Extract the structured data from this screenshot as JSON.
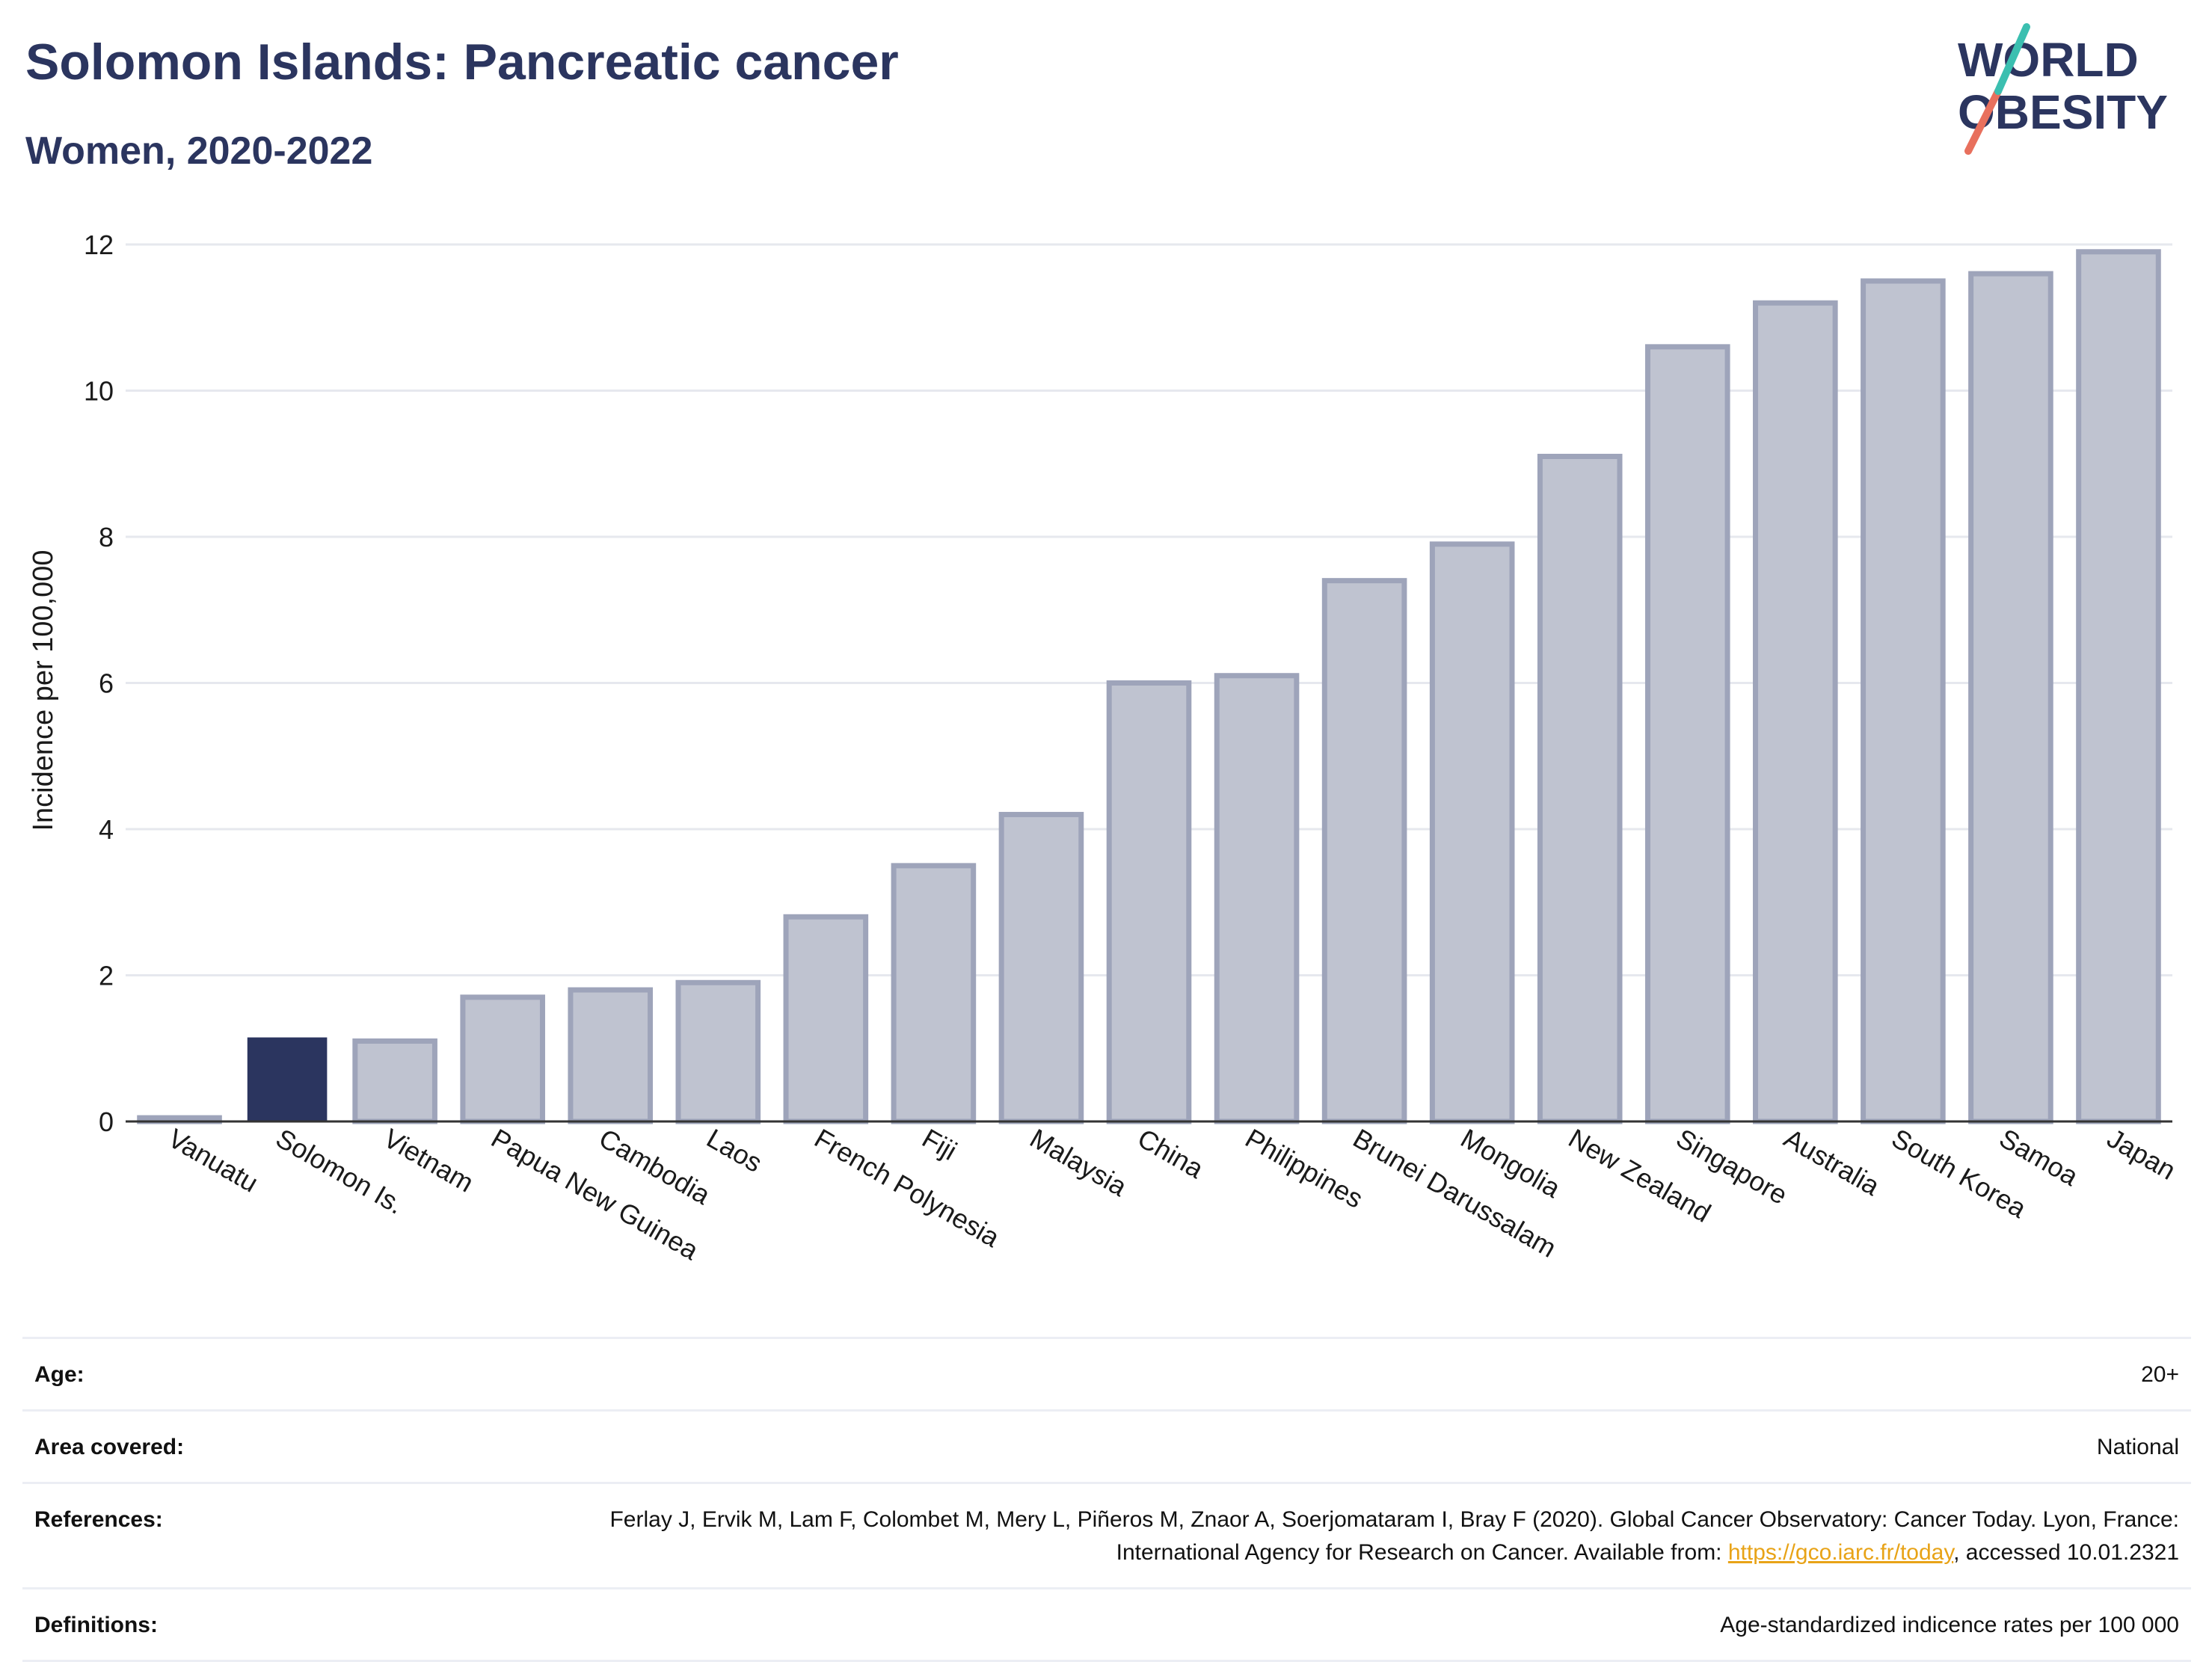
{
  "header": {
    "title": "Solomon Islands: Pancreatic cancer",
    "subtitle": "Women, 2020-2022"
  },
  "logo": {
    "line1": "WORLD",
    "line2": "OBESITY",
    "text_color": "#2b355f",
    "slash_colors": [
      "#e8705d",
      "#3bbfb0"
    ]
  },
  "colors": {
    "highlight_bar": "#2b355f",
    "other_bar_fill": "#bfc3d0",
    "other_bar_stroke": "#9ea4ba",
    "grid": "#e6e8ee"
  },
  "chart_data": {
    "type": "bar",
    "title": "Solomon Islands: Pancreatic cancer",
    "subtitle": "Women, 2020-2022",
    "xlabel": "",
    "ylabel": "Incidence per 100,000",
    "ylim": [
      0,
      12
    ],
    "yticks": [
      0,
      2,
      4,
      6,
      8,
      10,
      12
    ],
    "grid": true,
    "highlight": "Solomon Is.",
    "categories": [
      "Vanuatu",
      "Solomon Is.",
      "Vietnam",
      "Papua New Guinea",
      "Cambodia",
      "Laos",
      "French Polynesia",
      "Fiji",
      "Malaysia",
      "China",
      "Philippines",
      "Brunei Darussalam",
      "Mongolia",
      "New Zealand",
      "Singapore",
      "Australia",
      "South Korea",
      "Samoa",
      "Japan"
    ],
    "values": [
      0.05,
      1.15,
      1.1,
      1.7,
      1.8,
      1.9,
      2.8,
      3.5,
      4.2,
      6.0,
      6.1,
      7.4,
      7.9,
      9.1,
      10.6,
      11.2,
      11.5,
      11.6,
      11.9
    ]
  },
  "info": [
    {
      "key": "Age:",
      "value": "20+"
    },
    {
      "key": "Area covered:",
      "value": "National"
    },
    {
      "key": "References:",
      "value_pre": "Ferlay J, Ervik M, Lam F, Colombet M, Mery L, Piñeros M, Znaor A, Soerjomataram I, Bray F (2020). Global Cancer Observatory: Cancer Today. Lyon, France: International Agency for Research on Cancer. Available from: ",
      "link": "https://gco.iarc.fr/today",
      "value_post": ", accessed 10.01.2321"
    },
    {
      "key": "Definitions:",
      "value": "Age-standardized indicence rates per 100 000"
    }
  ]
}
